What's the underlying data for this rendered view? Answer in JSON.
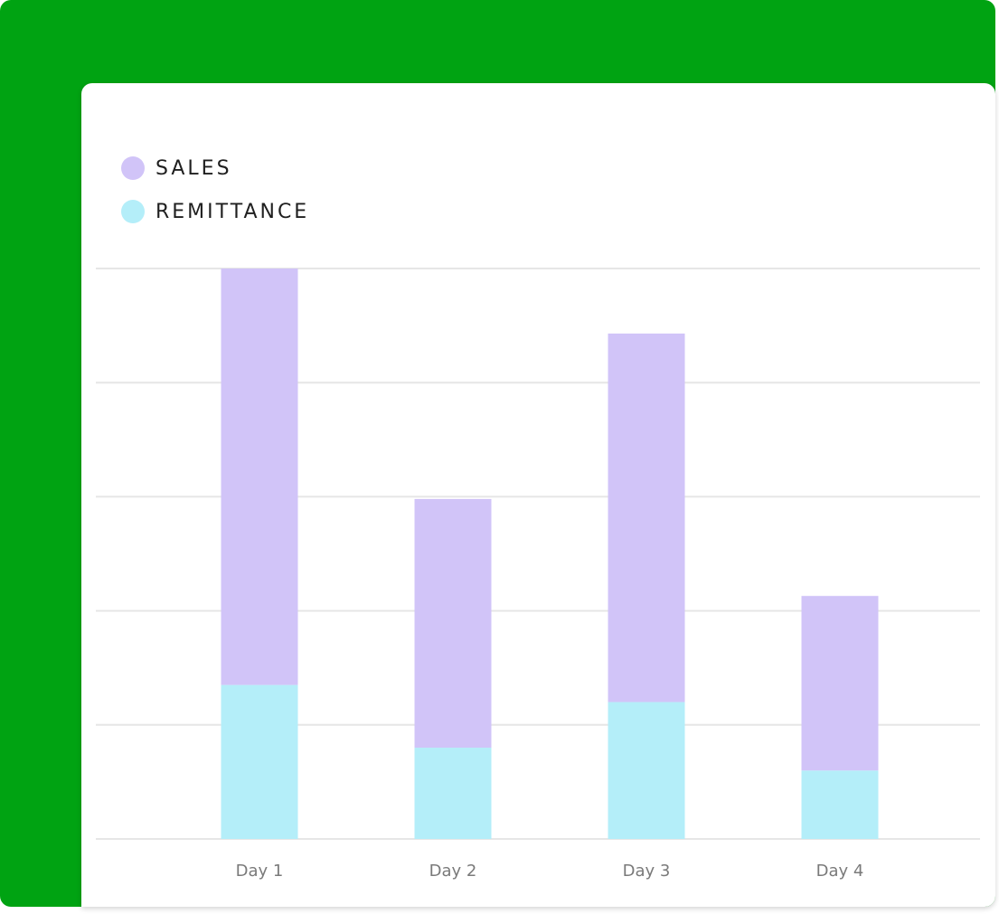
{
  "colors": {
    "background": "#00a312",
    "sales": "#d1c4f8",
    "remittance": "#b4eef9",
    "gridline": "#e6e6e6"
  },
  "legend": {
    "sales_label": "SALES",
    "remittance_label": "REMITTANCE"
  },
  "chart_data": {
    "type": "bar",
    "stacked": true,
    "categories": [
      "Day 1",
      "Day 2",
      "Day 3",
      "Day 4"
    ],
    "series": [
      {
        "name": "REMITTANCE",
        "values": [
          1.35,
          0.8,
          1.2,
          0.6
        ]
      },
      {
        "name": "SALES",
        "values": [
          3.65,
          2.18,
          3.23,
          1.53
        ]
      }
    ],
    "ylim": [
      0,
      5
    ],
    "grid": true,
    "legend_position": "top-left",
    "xlabel": "",
    "ylabel": ""
  }
}
